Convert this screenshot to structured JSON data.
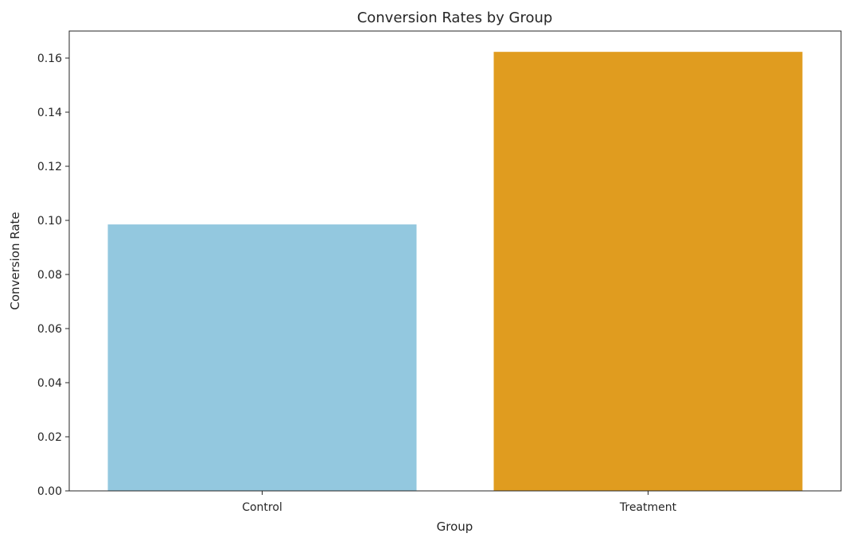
{
  "chart_data": {
    "type": "bar",
    "title": "Conversion Rates by Group",
    "xlabel": "Group",
    "ylabel": "Conversion Rate",
    "categories": [
      "Control",
      "Treatment"
    ],
    "values": [
      0.0985,
      0.1623
    ],
    "colors": [
      "#93c8df",
      "#e09c1f"
    ],
    "ylim": [
      0,
      0.17
    ],
    "yticks": [
      0.0,
      0.02,
      0.04,
      0.06,
      0.08,
      0.1,
      0.12,
      0.14,
      0.16
    ],
    "ytick_labels": [
      "0.00",
      "0.02",
      "0.04",
      "0.06",
      "0.08",
      "0.10",
      "0.12",
      "0.14",
      "0.16"
    ],
    "grid": false,
    "legend": "none"
  }
}
